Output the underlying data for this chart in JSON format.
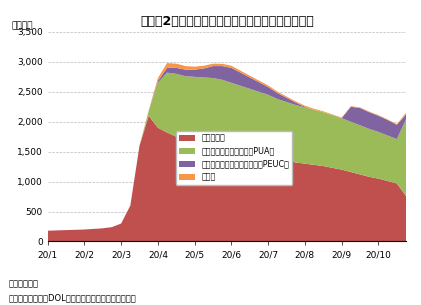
{
  "title": "(図表2)失業保険継続受給者数(プログラム別)",
  "title_prefix": "(万人)",
  "ylabel": "(万人)",
  "xlabel_note1": "(注)未季調",
  "xlabel_note2": "(資料)労働省(DOL)よりニッセイ基礎研究所作成",
  "ylim": [
    0,
    3500
  ],
  "yticks": [
    0,
    500,
    1000,
    1500,
    2000,
    2500,
    3000,
    3500
  ],
  "background_color": "#ffffff",
  "x_labels": [
    "20/1",
    "20/2",
    "20/3",
    "20/4",
    "20/5",
    "20/6",
    "20/7",
    "20/8",
    "20/9",
    "20/10"
  ],
  "legend_labels": [
    "通常支給分",
    "パンデミック失業支援（PUA）",
    "パンデミック緊急失業補償（PEUC）",
    "その他"
  ],
  "colors": [
    "#c0504d",
    "#9bbb59",
    "#8064a2",
    "#f79646"
  ],
  "x_ticks_positions": [
    0,
    4,
    8,
    12,
    16,
    20,
    24,
    28,
    32,
    36
  ],
  "n_points": 40,
  "regular": [
    180,
    185,
    190,
    195,
    200,
    210,
    220,
    240,
    300,
    600,
    1600,
    2100,
    1900,
    1820,
    1750,
    1680,
    1650,
    1620,
    1600,
    1580,
    1550,
    1520,
    1490,
    1460,
    1430,
    1380,
    1350,
    1320,
    1300,
    1280,
    1260,
    1230,
    1200,
    1160,
    1120,
    1080,
    1050,
    1010,
    970,
    760
  ],
  "pua": [
    0,
    0,
    0,
    0,
    0,
    0,
    0,
    0,
    0,
    0,
    0,
    80,
    750,
    1000,
    1050,
    1080,
    1100,
    1120,
    1130,
    1120,
    1100,
    1080,
    1060,
    1040,
    1020,
    1000,
    980,
    960,
    940,
    920,
    900,
    880,
    860,
    840,
    820,
    800,
    780,
    760,
    740,
    1280
  ],
  "peuc": [
    0,
    0,
    0,
    0,
    0,
    0,
    0,
    0,
    0,
    0,
    0,
    0,
    30,
    80,
    100,
    110,
    120,
    150,
    200,
    230,
    250,
    220,
    190,
    160,
    130,
    100,
    70,
    40,
    10,
    0,
    0,
    0,
    0,
    250,
    290,
    280,
    270,
    260,
    240,
    80
  ],
  "other": [
    0,
    0,
    0,
    0,
    0,
    0,
    0,
    0,
    0,
    0,
    0,
    10,
    50,
    80,
    70,
    60,
    50,
    45,
    40,
    38,
    35,
    32,
    30,
    28,
    26,
    24,
    22,
    20,
    18,
    16,
    14,
    12,
    10,
    10,
    10,
    10,
    10,
    10,
    10,
    30
  ]
}
